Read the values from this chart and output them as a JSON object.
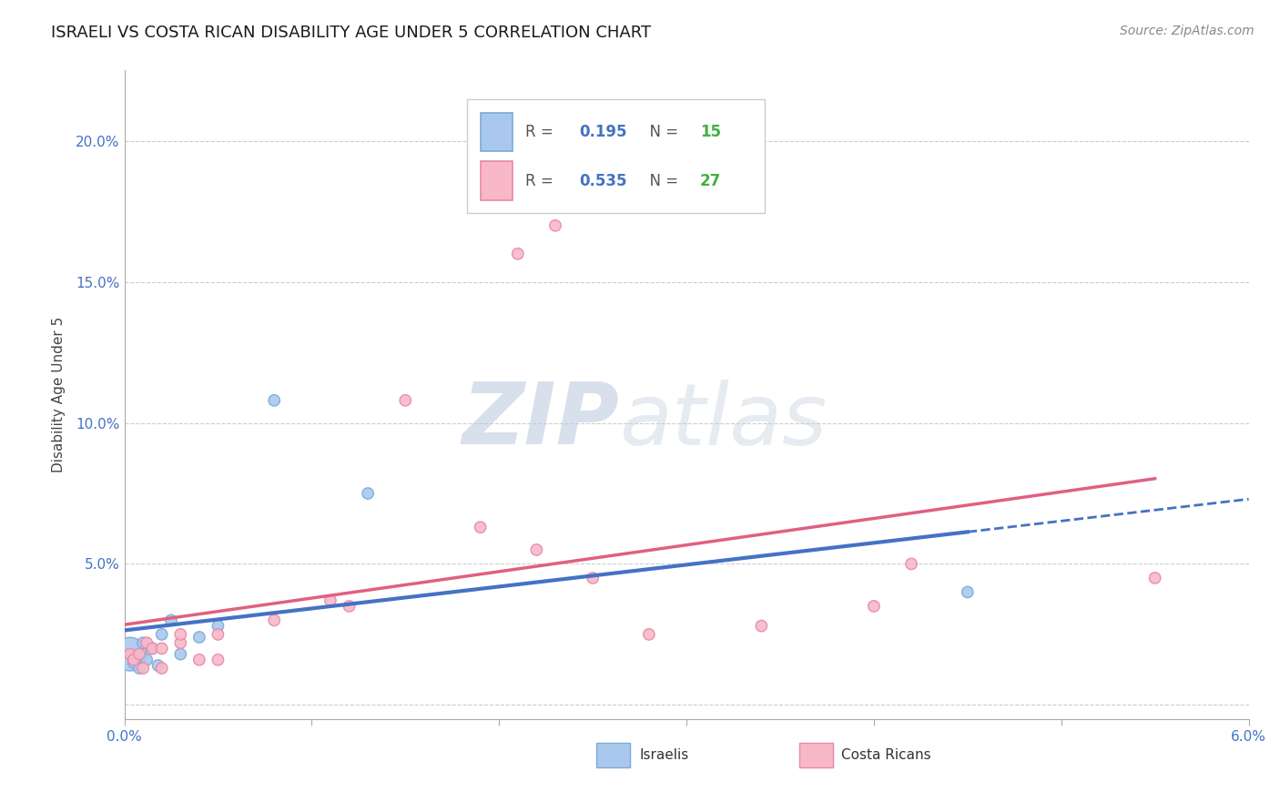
{
  "title": "ISRAELI VS COSTA RICAN DISABILITY AGE UNDER 5 CORRELATION CHART",
  "source": "Source: ZipAtlas.com",
  "ylabel": "Disability Age Under 5",
  "xlim": [
    0.0,
    0.06
  ],
  "ylim": [
    -0.005,
    0.225
  ],
  "xticks": [
    0.0,
    0.01,
    0.02,
    0.03,
    0.04,
    0.05,
    0.06
  ],
  "xticklabels": [
    "0.0%",
    "",
    "",
    "",
    "",
    "",
    "6.0%"
  ],
  "yticks": [
    0.0,
    0.05,
    0.1,
    0.15,
    0.2
  ],
  "yticklabels": [
    "",
    "5.0%",
    "10.0%",
    "15.0%",
    "20.0%"
  ],
  "israeli_color": "#aac8ee",
  "israeli_edge_color": "#7aaad8",
  "costarican_color": "#f8b8c8",
  "costarican_edge_color": "#e888a8",
  "israeli_line_color": "#4472c4",
  "costarican_line_color": "#e06080",
  "legend_israeli_R": "0.195",
  "legend_israeli_N": "15",
  "legend_costarican_R": "0.535",
  "legend_costarican_N": "27",
  "R_label_color": "#555555",
  "R_value_color": "#4472c4",
  "N_value_color": "#40b040",
  "israeli_x": [
    0.0003,
    0.0005,
    0.0008,
    0.001,
    0.0012,
    0.0015,
    0.0018,
    0.002,
    0.0025,
    0.003,
    0.004,
    0.005,
    0.008,
    0.013,
    0.045
  ],
  "israeli_y": [
    0.018,
    0.015,
    0.013,
    0.022,
    0.016,
    0.02,
    0.014,
    0.025,
    0.03,
    0.018,
    0.024,
    0.028,
    0.108,
    0.075,
    0.04
  ],
  "israeli_size": [
    700,
    80,
    80,
    80,
    80,
    80,
    80,
    80,
    80,
    80,
    80,
    80,
    80,
    80,
    80
  ],
  "costarican_x": [
    0.0003,
    0.0005,
    0.0008,
    0.001,
    0.0012,
    0.0015,
    0.002,
    0.002,
    0.003,
    0.003,
    0.004,
    0.005,
    0.005,
    0.008,
    0.011,
    0.012,
    0.015,
    0.019,
    0.021,
    0.022,
    0.023,
    0.025,
    0.028,
    0.034,
    0.04,
    0.042,
    0.055
  ],
  "costarican_y": [
    0.018,
    0.016,
    0.018,
    0.013,
    0.022,
    0.02,
    0.013,
    0.02,
    0.022,
    0.025,
    0.016,
    0.016,
    0.025,
    0.03,
    0.037,
    0.035,
    0.108,
    0.063,
    0.16,
    0.055,
    0.17,
    0.045,
    0.025,
    0.028,
    0.035,
    0.05,
    0.045
  ],
  "costarican_size": [
    80,
    80,
    80,
    80,
    80,
    80,
    80,
    80,
    80,
    80,
    80,
    80,
    80,
    80,
    80,
    80,
    80,
    80,
    80,
    80,
    80,
    80,
    80,
    80,
    80,
    80,
    80
  ],
  "watermark": "ZIPatlas",
  "watermark_color": "#ccd8ec",
  "background_color": "#ffffff",
  "grid_color": "#cccccc",
  "title_fontsize": 13,
  "axis_label_fontsize": 11,
  "tick_fontsize": 11,
  "source_fontsize": 10
}
